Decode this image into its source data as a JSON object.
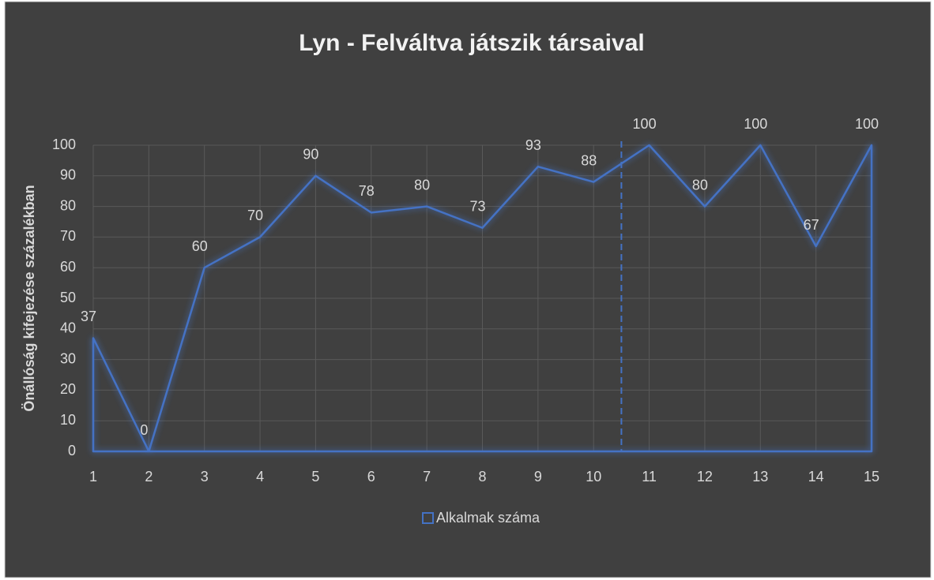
{
  "chart_data": {
    "type": "area",
    "title": "Lyn - Felváltva játszik társaival",
    "y_label": "Önállóság kifejezése százalékban",
    "x": [
      1,
      2,
      3,
      4,
      5,
      6,
      7,
      8,
      9,
      10,
      11,
      12,
      13,
      14,
      15
    ],
    "series": [
      {
        "name": "Alkalmak száma",
        "color": "#4472c4",
        "values": [
          37,
          0,
          60,
          70,
          90,
          78,
          80,
          73,
          93,
          88,
          100,
          80,
          100,
          67,
          100
        ]
      }
    ],
    "xlim": [
      1,
      15
    ],
    "xticks": [
      1,
      2,
      3,
      4,
      5,
      6,
      7,
      8,
      9,
      10,
      11,
      12,
      13,
      14,
      15
    ],
    "ylim": [
      0,
      100
    ],
    "yticks": [
      0,
      10,
      20,
      30,
      40,
      50,
      60,
      70,
      80,
      90,
      100
    ],
    "grid": true,
    "data_labels": true,
    "vline_x": 10.5,
    "legend": "bottom"
  }
}
